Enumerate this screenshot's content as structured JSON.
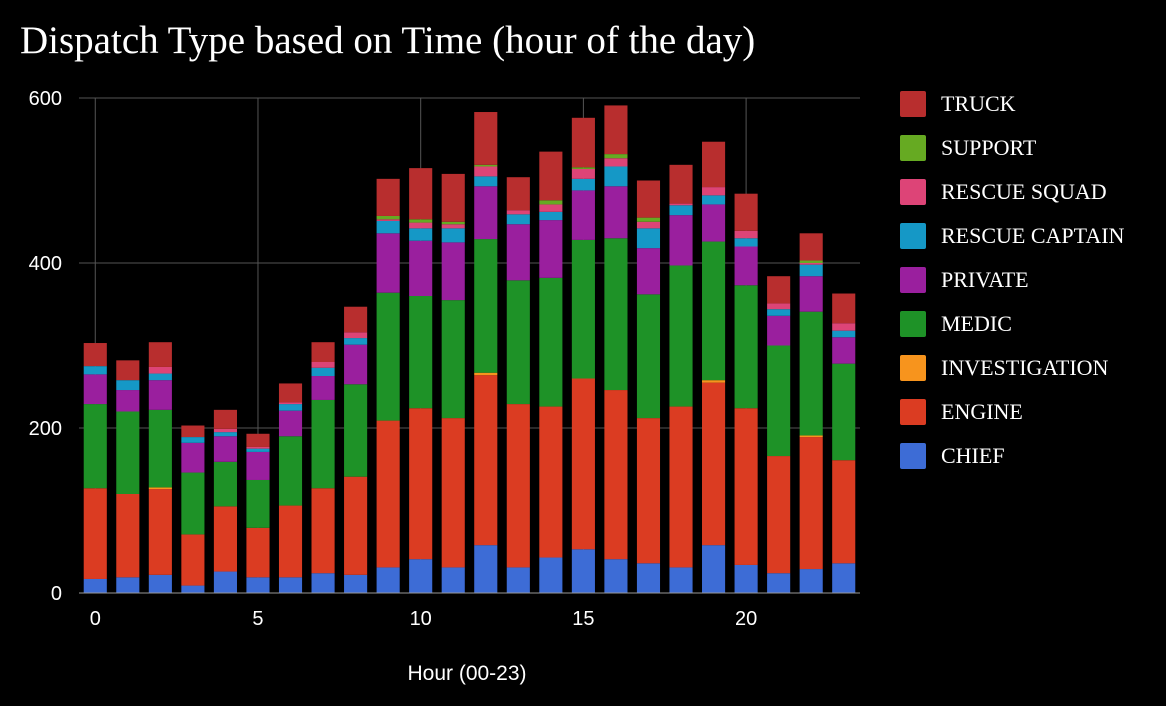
{
  "chart_data": {
    "type": "bar",
    "stacked": true,
    "title": "Dispatch Type based on Time (hour of the day)",
    "xlabel": "Hour (00-23)",
    "ylabel": "",
    "ylim": [
      0,
      600
    ],
    "yticks": [
      0,
      200,
      400,
      600
    ],
    "xticks": [
      0,
      5,
      10,
      15,
      20
    ],
    "categories": [
      0,
      1,
      2,
      3,
      4,
      5,
      6,
      7,
      8,
      9,
      10,
      11,
      12,
      13,
      14,
      15,
      16,
      17,
      18,
      19,
      20,
      21,
      22,
      23
    ],
    "grid": true,
    "legend_position": "right",
    "series": [
      {
        "name": "CHIEF",
        "color": "#3d6cd6",
        "values": [
          17,
          19,
          22,
          9,
          26,
          19,
          19,
          24,
          22,
          31,
          41,
          31,
          58,
          31,
          43,
          53,
          41,
          36,
          31,
          58,
          34,
          24,
          29,
          36
        ]
      },
      {
        "name": "ENGINE",
        "color": "#db3c22",
        "values": [
          110,
          101,
          104,
          62,
          79,
          60,
          87,
          103,
          119,
          178,
          183,
          181,
          206,
          198,
          183,
          207,
          205,
          176,
          195,
          197,
          190,
          142,
          160,
          125
        ]
      },
      {
        "name": "INVESTIGATION",
        "color": "#f7941d",
        "values": [
          0,
          0,
          2,
          0,
          0,
          0,
          0,
          0,
          0,
          0,
          0,
          0,
          3,
          0,
          0,
          0,
          0,
          0,
          0,
          3,
          0,
          0,
          2,
          0
        ]
      },
      {
        "name": "MEDIC",
        "color": "#1e9227",
        "values": [
          102,
          100,
          94,
          75,
          54,
          58,
          84,
          107,
          112,
          155,
          136,
          143,
          162,
          150,
          156,
          168,
          184,
          150,
          171,
          168,
          149,
          134,
          150,
          117
        ]
      },
      {
        "name": "PRIVATE",
        "color": "#9a1f9e",
        "values": [
          36,
          26,
          36,
          36,
          31,
          34,
          31,
          29,
          48,
          72,
          67,
          70,
          64,
          68,
          70,
          60,
          63,
          56,
          61,
          45,
          47,
          36,
          43,
          32
        ]
      },
      {
        "name": "RESCUE CAPTAIN",
        "color": "#1598c6",
        "values": [
          10,
          12,
          8,
          7,
          5,
          4,
          8,
          10,
          8,
          15,
          15,
          17,
          12,
          12,
          10,
          14,
          24,
          24,
          12,
          11,
          10,
          8,
          14,
          8
        ]
      },
      {
        "name": "RESCUE SQUAD",
        "color": "#dd4477",
        "values": [
          0,
          0,
          8,
          0,
          4,
          2,
          2,
          7,
          7,
          2,
          7,
          5,
          12,
          5,
          9,
          12,
          10,
          8,
          2,
          10,
          9,
          7,
          2,
          9
        ]
      },
      {
        "name": "SUPPORT",
        "color": "#66aa22",
        "values": [
          0,
          0,
          0,
          0,
          0,
          0,
          0,
          0,
          0,
          4,
          4,
          3,
          2,
          0,
          5,
          2,
          5,
          5,
          0,
          0,
          0,
          0,
          3,
          0
        ]
      },
      {
        "name": "TRUCK",
        "color": "#b82e2e",
        "values": [
          28,
          24,
          30,
          14,
          23,
          16,
          23,
          24,
          31,
          45,
          62,
          58,
          64,
          40,
          59,
          60,
          59,
          45,
          47,
          55,
          45,
          33,
          33,
          36
        ]
      }
    ]
  }
}
